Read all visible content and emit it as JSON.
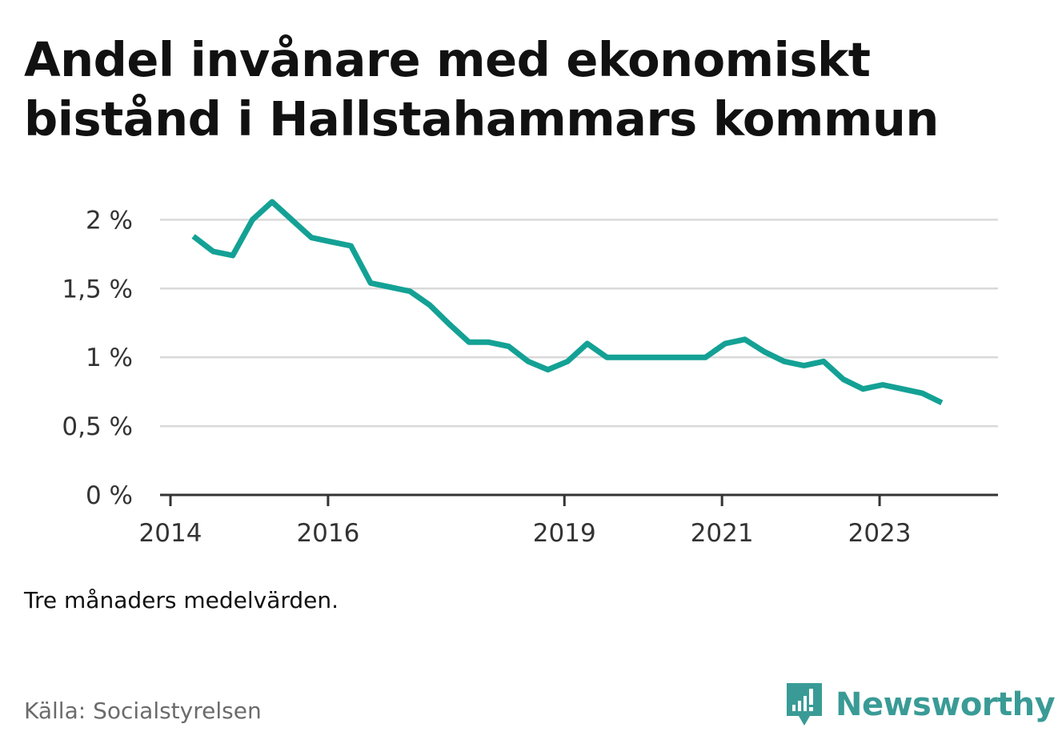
{
  "title": "Andel invånare med ekonomiskt bistånd i Hallstahammars kommun",
  "note": "Tre månaders medelvärden.",
  "source": "Källa: Socialstyrelsen",
  "brand": {
    "name": "Newsworthy",
    "icon": "bar-chart-speech-bubble-icon"
  },
  "colors": {
    "line": "#14a195",
    "grid": "#d9d9d9",
    "axis": "#333333",
    "brand": "#3a9b96"
  },
  "chart_data": {
    "type": "line",
    "title": "Andel invånare med ekonomiskt bistånd i Hallstahammars kommun",
    "xlabel": "",
    "ylabel": "",
    "ylim": [
      0,
      2.2
    ],
    "yticks": [
      0,
      0.5,
      1,
      1.5,
      2
    ],
    "ytick_labels": [
      "0 %",
      "0,5 %",
      "1 %",
      "1,5 %",
      "2 %"
    ],
    "xlim": [
      2014.0,
      2024.33
    ],
    "xticks": [
      2014,
      2016,
      2019,
      2021,
      2023
    ],
    "xtick_labels": [
      "2014",
      "2016",
      "2019",
      "2021",
      "2023"
    ],
    "grid": true,
    "series": [
      {
        "x": [
          2014.29,
          2014.54,
          2014.79,
          2015.04,
          2015.29,
          2015.54,
          2015.79,
          2016.04,
          2016.29,
          2016.54,
          2016.79,
          2017.04,
          2017.29,
          2017.54,
          2017.79,
          2018.04,
          2018.29,
          2018.54,
          2018.79,
          2019.04,
          2019.29,
          2019.54,
          2019.79,
          2020.04,
          2020.29,
          2020.54,
          2020.79,
          2021.04,
          2021.29,
          2021.54,
          2021.79,
          2022.04,
          2022.29,
          2022.54,
          2022.79,
          2023.04,
          2023.29,
          2023.54,
          2023.79
        ],
        "values": [
          1.88,
          1.77,
          1.74,
          2.0,
          2.13,
          2.0,
          1.87,
          1.84,
          1.81,
          1.54,
          1.51,
          1.48,
          1.38,
          1.24,
          1.11,
          1.11,
          1.08,
          0.97,
          0.91,
          0.97,
          1.1,
          1.0,
          1.0,
          1.0,
          1.0,
          1.0,
          1.0,
          1.1,
          1.13,
          1.04,
          0.97,
          0.94,
          0.97,
          0.84,
          0.77,
          0.8,
          0.77,
          0.74,
          0.67
        ]
      }
    ]
  }
}
